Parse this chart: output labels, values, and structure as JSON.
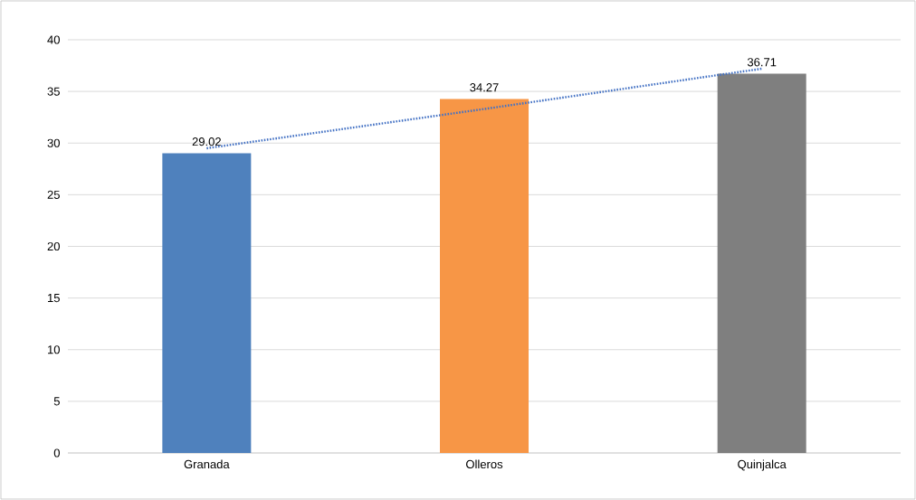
{
  "chart_data": {
    "type": "bar",
    "categories": [
      "Granada",
      "Olleros",
      "Quinjalca"
    ],
    "series": [
      {
        "values": [
          29.02,
          34.27,
          36.71
        ],
        "value_labels": [
          "29.02",
          "34.27",
          "36.71"
        ],
        "colors": [
          "#4f81bd",
          "#f79646",
          "#7f7f7f"
        ]
      },
      {
        "type": "line",
        "values": [
          29.5,
          33.3,
          37.2
        ],
        "color": "#4472c4",
        "line_style": "dotted"
      }
    ],
    "ylim": [
      0,
      40
    ],
    "yticks": [
      0,
      5,
      10,
      15,
      20,
      25,
      30,
      35,
      40
    ],
    "grid": "y"
  }
}
